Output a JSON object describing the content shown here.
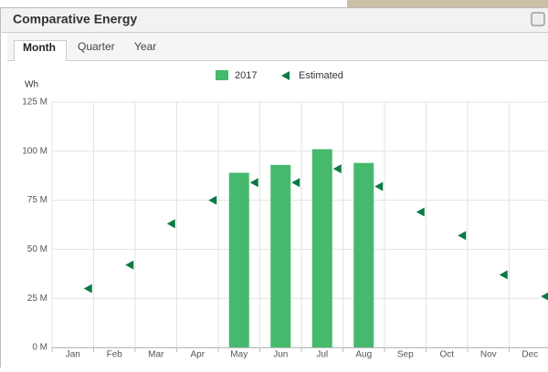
{
  "header": {
    "title": "Comparative Energy"
  },
  "tabs": [
    "Month",
    "Quarter",
    "Year"
  ],
  "chart_data": {
    "type": "bar",
    "y_label": "Wh",
    "categories": [
      "Jan",
      "Feb",
      "Mar",
      "Apr",
      "May",
      "Jun",
      "Jul",
      "Aug",
      "Sep",
      "Oct",
      "Nov",
      "Dec"
    ],
    "series": [
      {
        "name": "2017",
        "type": "bar",
        "color": "#46b96c",
        "values": [
          null,
          null,
          null,
          null,
          89,
          93,
          101,
          94,
          null,
          null,
          null,
          null
        ]
      },
      {
        "name": "Estimated",
        "type": "scatter",
        "marker": "triangle-left",
        "color": "#0b7a45",
        "values": [
          30,
          42,
          63,
          75,
          84,
          84,
          91,
          82,
          69,
          57,
          37,
          26
        ]
      }
    ],
    "ylim": [
      0,
      125
    ],
    "yticks": [
      {
        "value": 0,
        "label": "0 M"
      },
      {
        "value": 25,
        "label": "25 M"
      },
      {
        "value": 50,
        "label": "50 M"
      },
      {
        "value": 75,
        "label": "75 M"
      },
      {
        "value": 100,
        "label": "100 M"
      },
      {
        "value": 125,
        "label": "125 M"
      }
    ],
    "grid": true
  }
}
